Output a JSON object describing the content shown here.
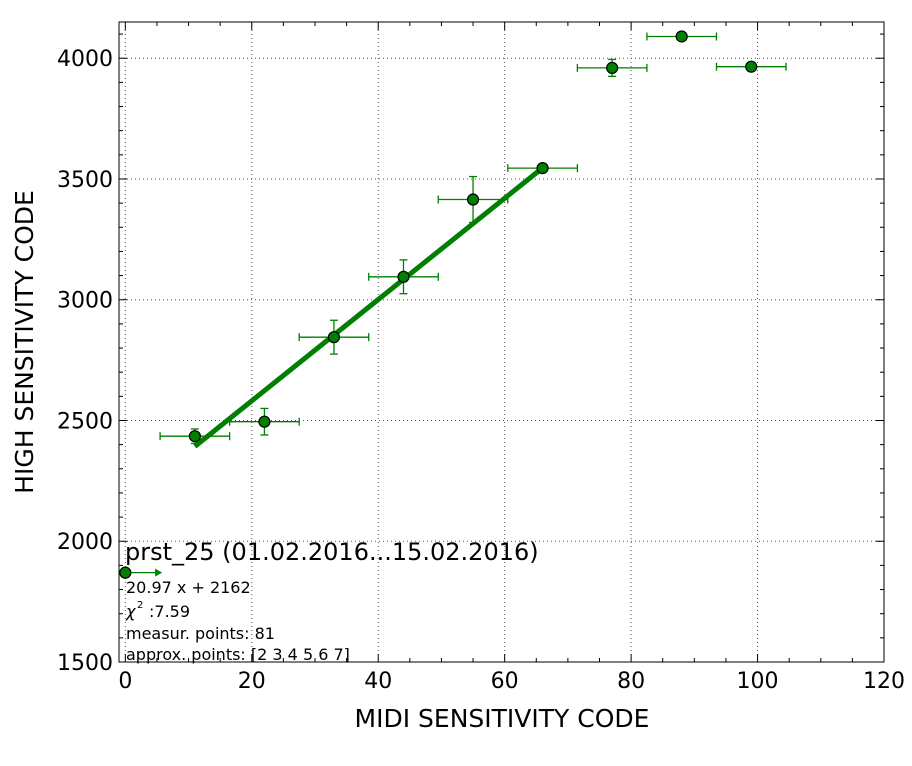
{
  "chart_data": {
    "type": "scatter",
    "title": "",
    "xlabel": "MIDI SENSITIVITY CODE",
    "ylabel": "HIGH SENSITIVITY CODE",
    "xlim": [
      -1,
      120
    ],
    "ylim": [
      1500,
      4150
    ],
    "x_ticks": [
      0,
      20,
      40,
      60,
      80,
      100,
      120
    ],
    "y_ticks": [
      1500,
      2000,
      2500,
      3000,
      3500,
      4000
    ],
    "grid": true,
    "colors": {
      "points": "#007f00",
      "fit": "#007f00",
      "errorbar": "#007f00",
      "point_edge": "#000000"
    },
    "points": [
      {
        "x": 0,
        "y": 1870,
        "xerr_low": 0,
        "xerr_high": 5.5,
        "yerr": 0,
        "arrow_right": true
      },
      {
        "x": 11,
        "y": 2435,
        "xerr_low": 5.5,
        "xerr_high": 5.5,
        "yerr": 30
      },
      {
        "x": 22,
        "y": 2495,
        "xerr_low": 5.5,
        "xerr_high": 5.5,
        "yerr": 55
      },
      {
        "x": 33,
        "y": 2845,
        "xerr_low": 5.5,
        "xerr_high": 5.5,
        "yerr": 70
      },
      {
        "x": 44,
        "y": 3095,
        "xerr_low": 5.5,
        "xerr_high": 5.5,
        "yerr": 70
      },
      {
        "x": 55,
        "y": 3415,
        "xerr_low": 5.5,
        "xerr_high": 5.5,
        "yerr": 95
      },
      {
        "x": 66,
        "y": 3545,
        "xerr_low": 5.5,
        "xerr_high": 5.5,
        "yerr": 0
      },
      {
        "x": 77,
        "y": 3960,
        "xerr_low": 5.5,
        "xerr_high": 5.5,
        "yerr": 35
      },
      {
        "x": 88,
        "y": 4090,
        "xerr_low": 5.5,
        "xerr_high": 5.5,
        "yerr": 0
      },
      {
        "x": 99,
        "y": 3965,
        "xerr_low": 5.5,
        "xerr_high": 5.5,
        "yerr": 0
      }
    ],
    "fit": {
      "slope": 20.97,
      "intercept": 2162,
      "x_range": [
        11,
        66
      ]
    },
    "annotations": {
      "name": "prst_25 (01.02.2016...15.02.2016)",
      "equation": "20.97 x + 2162",
      "chi2_symbol": "χ",
      "chi2_value": ":7.59",
      "measur_points": "measur. points: 81",
      "approx_points": "approx. points: [2 3 4 5 6 7]"
    }
  }
}
